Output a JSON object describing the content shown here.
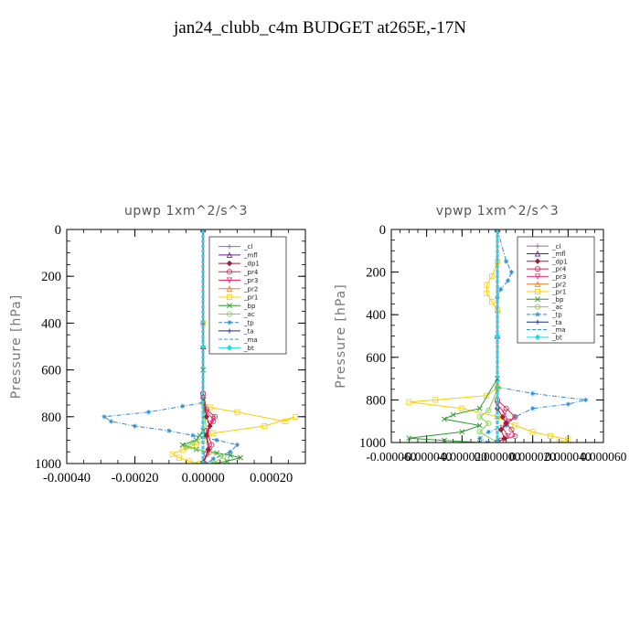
{
  "page": {
    "title": "jan24_clubb_c4m  BUDGET at265E,-17N"
  },
  "legend_entries": [
    {
      "name": "_cl",
      "color": "#8e6bb0",
      "marker": "plus"
    },
    {
      "name": "_mfl",
      "color": "#6a1b8a",
      "marker": "tri"
    },
    {
      "name": "_dp1",
      "color": "#9b1f3c",
      "marker": "diamond"
    },
    {
      "name": "_pr4",
      "color": "#e0204c",
      "marker": "circle"
    },
    {
      "name": "_pr3",
      "color": "#ee3070",
      "marker": "tridown"
    },
    {
      "name": "_pr2",
      "color": "#f07a2a",
      "marker": "tri"
    },
    {
      "name": "_pr1",
      "color": "#f4d000",
      "marker": "square"
    },
    {
      "name": "_bp",
      "color": "#2e9a2e",
      "marker": "x"
    },
    {
      "name": "_ac",
      "color": "#7ed348",
      "marker": "circle"
    },
    {
      "name": "_tp",
      "color": "#2a8cd8",
      "marker": "star"
    },
    {
      "name": "_ta",
      "color": "#1a2a9a",
      "marker": "plus"
    },
    {
      "name": "_ma",
      "color": "#2aa0c8",
      "marker": "none"
    },
    {
      "name": "_bt",
      "color": "#20d8e8",
      "marker": "diamond"
    }
  ],
  "chart_data": [
    {
      "type": "line",
      "title": "upwp   1xm^2/s^3",
      "xlabel": "",
      "ylabel": "Pressure [hPa]",
      "xlim": [
        -0.0004,
        0.0003
      ],
      "ylim": [
        1000,
        0
      ],
      "xticks": [
        "-0.00040",
        "-0.00020",
        "0.00000",
        "0.00020"
      ],
      "xtick_values": [
        -0.0004,
        -0.0002,
        0.0,
        0.0002
      ],
      "yticks": [
        "0",
        "200",
        "400",
        "600",
        "800",
        "1000"
      ],
      "ytick_values": [
        0,
        200,
        400,
        600,
        800,
        1000
      ],
      "legend_position": "top-right",
      "series": [
        {
          "name": "_pr1",
          "x": [
            0,
            0,
            0,
            2e-05,
            0.0001,
            0.00024,
            0.00027,
            0.00018,
            3e-05,
            5e-06,
            -2e-05,
            -6e-05,
            -9e-05,
            -7e-05,
            -4e-05,
            -1e-05
          ],
          "y": [
            0,
            400,
            740,
            760,
            780,
            820,
            800,
            840,
            870,
            900,
            920,
            940,
            960,
            975,
            990,
            1000
          ]
        },
        {
          "name": "_tp",
          "x": [
            0,
            0,
            0,
            -6e-05,
            -0.00016,
            -0.00029,
            -0.00027,
            -0.0002,
            -0.0001,
            -3e-05,
            4e-05,
            0.0001,
            8e-05,
            3e-05,
            1e-05
          ],
          "y": [
            0,
            400,
            740,
            755,
            780,
            800,
            820,
            840,
            860,
            880,
            900,
            920,
            950,
            980,
            1000
          ]
        },
        {
          "name": "_bp",
          "x": [
            0,
            0,
            0,
            -1e-05,
            -2e-05,
            -6e-05,
            -2e-05,
            4e-05,
            8e-05,
            0.00011,
            7e-05,
            3e-05
          ],
          "y": [
            0,
            600,
            860,
            880,
            900,
            920,
            940,
            955,
            965,
            975,
            990,
            1000
          ]
        },
        {
          "name": "_ac",
          "x": [
            0,
            0,
            1e-05,
            -3e-05,
            -5e-05,
            2e-05,
            6e-05,
            3e-05
          ],
          "y": [
            0,
            700,
            880,
            910,
            930,
            950,
            970,
            1000
          ]
        },
        {
          "name": "_pr4",
          "x": [
            0,
            0,
            1e-05,
            3.5e-05,
            3e-05,
            1e-05,
            2.5e-05,
            1e-05,
            0
          ],
          "y": [
            0,
            700,
            770,
            800,
            820,
            860,
            920,
            960,
            1000
          ]
        },
        {
          "name": "_pr3",
          "x": [
            0,
            0,
            1e-05,
            3e-05,
            2e-05,
            1e-05,
            2e-05,
            0
          ],
          "y": [
            0,
            720,
            780,
            810,
            830,
            880,
            940,
            1000
          ]
        },
        {
          "name": "_dp1",
          "x": [
            0,
            0,
            1e-05,
            2e-05,
            1e-05,
            1.5e-05,
            0
          ],
          "y": [
            0,
            720,
            800,
            840,
            880,
            940,
            1000
          ]
        },
        {
          "name": "_cl",
          "x": [
            0,
            0,
            0
          ],
          "y": [
            0,
            500,
            1000
          ]
        },
        {
          "name": "_mfl",
          "x": [
            0,
            0,
            0
          ],
          "y": [
            0,
            500,
            1000
          ]
        },
        {
          "name": "_bt",
          "x": [
            0,
            0,
            0
          ],
          "y": [
            0,
            500,
            1000
          ]
        }
      ]
    },
    {
      "type": "line",
      "title": "vpwp   1xm^2/s^3",
      "xlabel": "",
      "ylabel": "Pressure [hPa]",
      "xlim": [
        -6e-05,
        6e-05
      ],
      "ylim": [
        1000,
        0
      ],
      "xticks": [
        "-0.000060",
        "-0.000040",
        "-0.000020",
        "0.000000",
        "0.000020",
        "0.000040",
        "0.000060"
      ],
      "xtick_values": [
        -6e-05,
        -4e-05,
        -2e-05,
        0,
        2e-05,
        4e-05,
        6e-05
      ],
      "yticks": [
        "0",
        "200",
        "400",
        "600",
        "800",
        "1000"
      ],
      "ytick_values": [
        0,
        200,
        400,
        600,
        800,
        1000
      ],
      "legend_position": "top-right",
      "series": [
        {
          "name": "_pr1",
          "x": [
            0,
            0,
            -3e-06,
            -6e-06,
            -6e-06,
            -3e-06,
            0,
            0,
            -6e-06,
            -3.5e-05,
            -5e-05,
            -2e-05,
            0,
            1e-05,
            2e-05,
            3e-05,
            4e-05,
            3.5e-05
          ],
          "y": [
            0,
            150,
            220,
            260,
            300,
            340,
            380,
            740,
            780,
            800,
            810,
            840,
            880,
            920,
            950,
            970,
            985,
            1000
          ]
        },
        {
          "name": "_tp",
          "x": [
            0,
            5e-06,
            8e-06,
            6e-06,
            2e-06,
            0,
            0,
            2e-05,
            5e-05,
            4e-05,
            2e-05,
            1e-05,
            5e-06,
            -5e-06,
            -1e-05,
            -5e-06
          ],
          "y": [
            0,
            150,
            200,
            240,
            280,
            320,
            740,
            770,
            800,
            820,
            840,
            880,
            920,
            950,
            980,
            1000
          ]
        },
        {
          "name": "_bp",
          "x": [
            0,
            0,
            -1e-05,
            -2.5e-05,
            -3e-05,
            -1e-05,
            -2e-05,
            -5e-05,
            -3e-05,
            -1e-05
          ],
          "y": [
            0,
            700,
            840,
            870,
            890,
            920,
            950,
            980,
            990,
            1000
          ]
        },
        {
          "name": "_ac",
          "x": [
            0,
            0,
            -5e-06,
            -1e-05,
            -5e-06,
            -1e-05,
            0
          ],
          "y": [
            0,
            750,
            850,
            880,
            910,
            950,
            1000
          ]
        },
        {
          "name": "_pr4",
          "x": [
            0,
            0,
            5e-06,
            1e-05,
            5e-06,
            8e-06,
            1e-05,
            2e-06,
            0
          ],
          "y": [
            0,
            800,
            840,
            880,
            910,
            940,
            970,
            990,
            1000
          ]
        },
        {
          "name": "_pr3",
          "x": [
            0,
            0,
            4e-06,
            6e-06,
            3e-06,
            6e-06,
            0
          ],
          "y": [
            0,
            820,
            860,
            900,
            930,
            970,
            1000
          ]
        },
        {
          "name": "_dp1",
          "x": [
            0,
            0,
            3e-06,
            5e-06,
            2e-06,
            4e-06,
            0
          ],
          "y": [
            0,
            840,
            880,
            910,
            940,
            980,
            1000
          ]
        },
        {
          "name": "_cl",
          "x": [
            0,
            0,
            0
          ],
          "y": [
            0,
            500,
            1000
          ]
        },
        {
          "name": "_mfl",
          "x": [
            0,
            0,
            0
          ],
          "y": [
            0,
            500,
            1000
          ]
        },
        {
          "name": "_bt",
          "x": [
            0,
            0,
            0
          ],
          "y": [
            0,
            500,
            1000
          ]
        }
      ]
    }
  ]
}
